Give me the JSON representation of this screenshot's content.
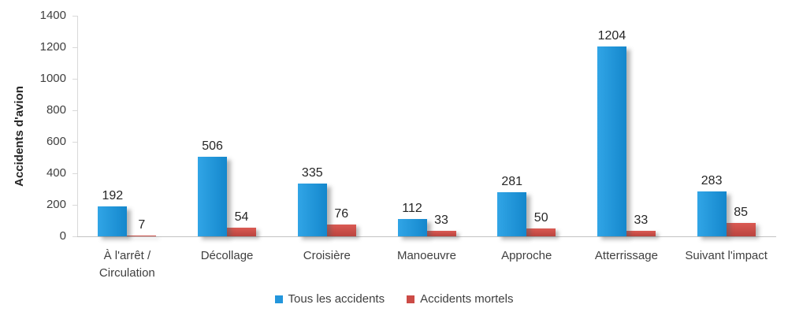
{
  "chart_data": {
    "type": "bar",
    "title": "",
    "xlabel": "",
    "ylabel": "Accidents d'avion",
    "categories": [
      "À l'arrêt /\nCirculation",
      "Décollage",
      "Croisière",
      "Manoeuvre",
      "Approche",
      "Atterrissage",
      "Suivant l'impact"
    ],
    "series": [
      {
        "name": "Tous les accidents",
        "values": [
          192,
          506,
          335,
          112,
          281,
          1204,
          283
        ],
        "color": "#2396DC",
        "color_light": "#31A5E6",
        "color_dark": "#1487CC",
        "gradient_direction": "to right"
      },
      {
        "name": "Accidents mortels",
        "values": [
          7,
          54,
          76,
          33,
          50,
          33,
          85
        ],
        "color": "#CC4B46",
        "color_light": "#DA5A53",
        "color_dark": "#BA443F",
        "gradient_direction": "to bottom"
      }
    ],
    "ylim": [
      0,
      1400
    ],
    "y_ticks": [
      0,
      200,
      400,
      600,
      800,
      1000,
      1200,
      1400
    ],
    "grid": false,
    "legend_position": "bottom",
    "data_labels": true
  },
  "colors": {
    "background": "#FFFFFF",
    "axis_line": "#D9D9D9",
    "baseline": "#C3C3C3",
    "tick_text": "#3F3F3F",
    "category_text": "#3F3F3F",
    "data_label_text": "#262626"
  }
}
